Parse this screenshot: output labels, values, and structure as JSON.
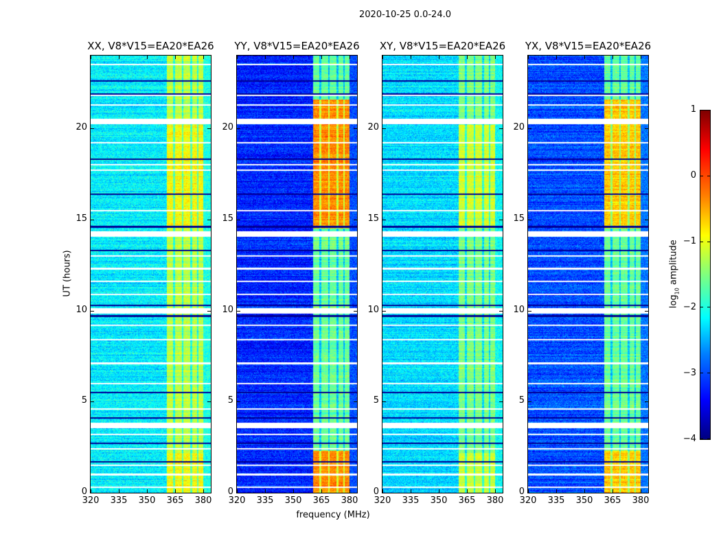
{
  "chart_data": {
    "type": "heatmap",
    "suptitle": "2020-10-25 0.0-24.0",
    "xlabel": "frequency (MHz)",
    "ylabel": "UT (hours)",
    "xlim": [
      320,
      384
    ],
    "ylim": [
      0,
      24
    ],
    "xticks": [
      320,
      335,
      350,
      365,
      380
    ],
    "yticks": [
      0,
      5,
      10,
      15,
      20
    ],
    "colorbar": {
      "label_prefix": "log",
      "label_sub": "10",
      "label_suffix": " amplitude",
      "range": [
        -4,
        1
      ],
      "ticks": [
        1,
        0,
        -1,
        -2,
        -3,
        -4
      ],
      "tick_labels": [
        "1",
        "0",
        "−1",
        "−2",
        "−3",
        "−4"
      ],
      "colormap": "jet"
    },
    "rfi_band_mhz": [
      360.5,
      380
    ],
    "band_gaps_mhz": [
      364.5,
      369,
      373.5,
      377
    ],
    "flagged_ut_hours": [
      0.3,
      1.0,
      1.5,
      2.4,
      3.2,
      3.7,
      4.6,
      6.0,
      7.1,
      8.4,
      9.2,
      10.0,
      10.9,
      11.6,
      12.3,
      13.0,
      14.2,
      15.5,
      17.7,
      18.0,
      19.2,
      20.4,
      21.3,
      21.8,
      23.5
    ],
    "dark_ut_hours": [
      1.7,
      2.7,
      4.1,
      5.5,
      9.7,
      10.3,
      13.3,
      14.6,
      16.4,
      18.3,
      21.9,
      22.6
    ],
    "panels": [
      {
        "title": "XX, V8*V15=EA20*EA26",
        "background_log10": -2.2,
        "band_log10": -1.2,
        "enhanced_ut": [
          [
            14.5,
            20.2
          ],
          [
            0,
            2.2
          ]
        ],
        "enhanced_log10": -0.9
      },
      {
        "title": "YY, V8*V15=EA20*EA26",
        "background_log10": -3.2,
        "band_log10": -1.6,
        "enhanced_ut": [
          [
            14.5,
            21.6
          ],
          [
            0,
            2.3
          ]
        ],
        "enhanced_log10": -0.3
      },
      {
        "title": "XY, V8*V15=EA20*EA26",
        "background_log10": -2.3,
        "band_log10": -1.5,
        "enhanced_ut": [
          [
            14.5,
            20.2
          ],
          [
            0,
            2.2
          ]
        ],
        "enhanced_log10": -1.1
      },
      {
        "title": "YX, V8*V15=EA20*EA26",
        "background_log10": -3.0,
        "band_log10": -1.6,
        "enhanced_ut": [
          [
            14.5,
            21.6
          ],
          [
            0,
            2.3
          ]
        ],
        "enhanced_log10": -0.6
      }
    ]
  }
}
